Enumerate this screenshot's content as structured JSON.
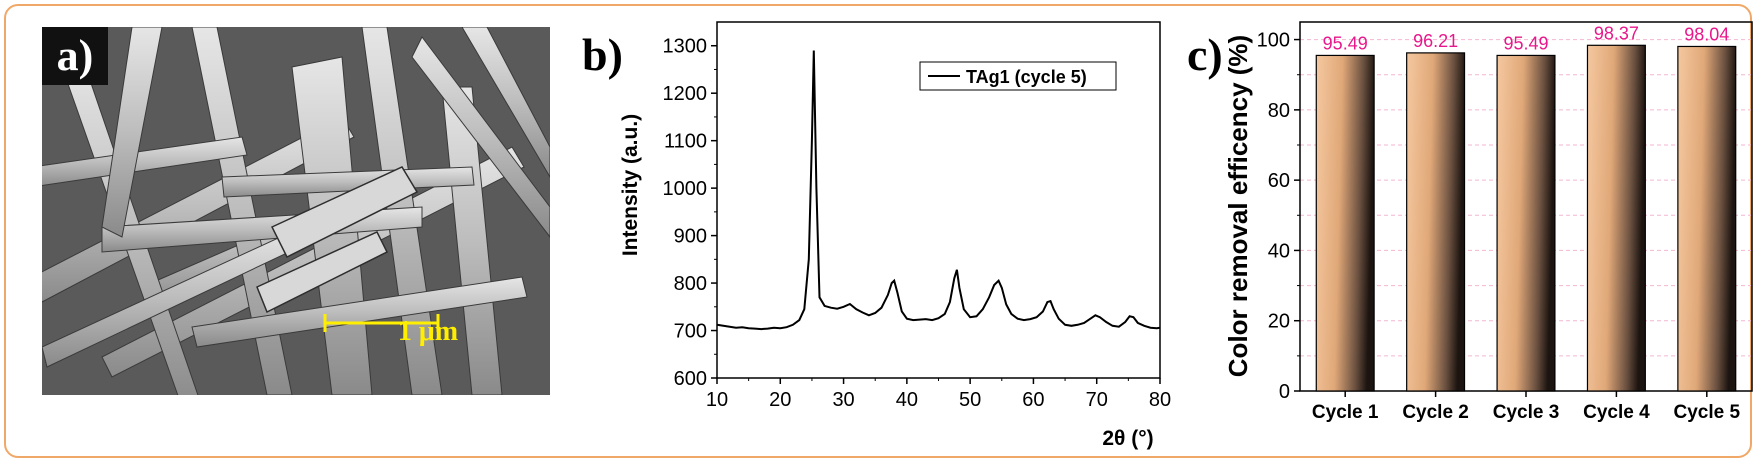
{
  "panel_a": {
    "label": "a)",
    "scale_bar_label": "1 μm",
    "scale_bar_color": "#ffee00"
  },
  "chart_data": [
    {
      "panel": "b)",
      "type": "line",
      "xlabel": "2θ (°)",
      "ylabel": "Intensity (a.u.)",
      "xlim": [
        10,
        80
      ],
      "ylim": [
        600,
        1350
      ],
      "xticks": [
        10,
        20,
        30,
        40,
        50,
        60,
        70,
        80
      ],
      "yticks": [
        600,
        700,
        800,
        900,
        1000,
        1100,
        1200,
        1300
      ],
      "legend_position": "top-right",
      "grid": false,
      "series": [
        {
          "name": "TAg1 (cycle 5)",
          "color": "#000000",
          "x": [
            10,
            11,
            12,
            13,
            14,
            15,
            16,
            17,
            18,
            19,
            20,
            21,
            22,
            23,
            23.8,
            24.5,
            25.0,
            25.3,
            25.7,
            26.2,
            27,
            28,
            29,
            30,
            31,
            32,
            33,
            34,
            35,
            36,
            37,
            37.6,
            38.0,
            38.5,
            39.2,
            40,
            41,
            42,
            43,
            44,
            45,
            46,
            46.8,
            47.5,
            47.9,
            48.3,
            49,
            50,
            51,
            52,
            53,
            53.8,
            54.5,
            55.0,
            55.7,
            56.5,
            57.5,
            58.5,
            59.5,
            60.5,
            61.5,
            62.2,
            62.7,
            63.2,
            64,
            65,
            66,
            67,
            68,
            69,
            69.8,
            70.5,
            71.5,
            72.5,
            73.5,
            74.5,
            75.2,
            75.8,
            76.5,
            77.5,
            78.5,
            79.5,
            80
          ],
          "y": [
            712,
            710,
            708,
            706,
            707,
            705,
            704,
            703,
            704,
            706,
            705,
            707,
            712,
            722,
            745,
            850,
            1100,
            1290,
            1000,
            770,
            752,
            748,
            746,
            750,
            756,
            745,
            738,
            732,
            737,
            748,
            775,
            800,
            805,
            780,
            740,
            725,
            722,
            723,
            724,
            722,
            726,
            735,
            760,
            810,
            828,
            790,
            745,
            728,
            730,
            745,
            770,
            796,
            805,
            790,
            755,
            735,
            725,
            722,
            724,
            728,
            740,
            760,
            762,
            745,
            725,
            712,
            710,
            712,
            716,
            725,
            732,
            728,
            718,
            710,
            708,
            718,
            730,
            728,
            716,
            710,
            706,
            705,
            706
          ]
        }
      ]
    },
    {
      "panel": "c)",
      "type": "bar",
      "categories": [
        "Cycle 1",
        "Cycle 2",
        "Cycle 3",
        "Cycle 4",
        "Cycle 5"
      ],
      "values": [
        95.49,
        96.21,
        95.49,
        98.37,
        98.04
      ],
      "data_labels": [
        "95.49",
        "96.21",
        "95.49",
        "98.37",
        "98.04"
      ],
      "data_label_color": "#e8188c",
      "bar_color": "#f5c8a0",
      "ylabel": "Color removal efficency (%)",
      "ylim": [
        0,
        105
      ],
      "yticks": [
        0,
        20,
        40,
        60,
        80,
        100
      ],
      "grid": true
    }
  ]
}
